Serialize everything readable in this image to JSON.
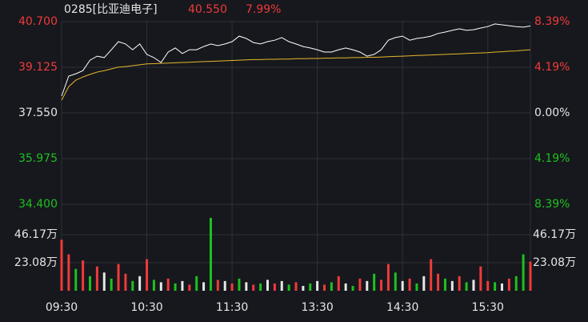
{
  "chart_data": {
    "type": "line",
    "title": "0285[比亚迪电子]",
    "price_label": "40.550",
    "change_label": "7.99%",
    "categories": [
      "09:30",
      null,
      null,
      null,
      null,
      null,
      null,
      null,
      null,
      null,
      null,
      null,
      "10:30",
      null,
      null,
      null,
      null,
      null,
      null,
      null,
      null,
      null,
      null,
      null,
      "11:30",
      null,
      null,
      null,
      null,
      null,
      null,
      null,
      null,
      null,
      null,
      null,
      "13:30",
      null,
      null,
      null,
      null,
      null,
      null,
      null,
      null,
      null,
      null,
      null,
      "14:30",
      null,
      null,
      null,
      null,
      null,
      null,
      null,
      null,
      null,
      null,
      null,
      "15:30",
      null,
      null,
      null,
      null,
      null,
      null
    ],
    "series": [
      {
        "color": "#ffffff",
        "values": [
          38.13,
          38.82,
          38.9,
          39.01,
          39.37,
          39.51,
          39.46,
          39.73,
          40.01,
          39.93,
          39.73,
          39.93,
          39.57,
          39.46,
          39.29,
          39.65,
          39.79,
          39.6,
          39.73,
          39.73,
          39.84,
          39.93,
          39.87,
          39.93,
          40.01,
          40.2,
          40.12,
          39.98,
          39.93,
          40.01,
          40.06,
          40.15,
          40.01,
          39.93,
          39.84,
          39.79,
          39.73,
          39.65,
          39.65,
          39.73,
          39.79,
          39.73,
          39.65,
          39.51,
          39.57,
          39.73,
          40.06,
          40.15,
          40.2,
          40.06,
          40.12,
          40.15,
          40.2,
          40.29,
          40.34,
          40.4,
          40.45,
          40.4,
          40.42,
          40.48,
          40.53,
          40.62,
          40.59,
          40.56,
          40.53,
          40.51,
          40.55
        ]
      },
      {
        "color": "#e8b52a",
        "values": [
          37.99,
          38.46,
          38.68,
          38.79,
          38.88,
          38.96,
          39.01,
          39.07,
          39.13,
          39.15,
          39.18,
          39.21,
          39.24,
          39.25,
          39.26,
          39.27,
          39.28,
          39.29,
          39.3,
          39.31,
          39.32,
          39.33,
          39.34,
          39.35,
          39.36,
          39.37,
          39.38,
          39.39,
          39.39,
          39.4,
          39.4,
          39.41,
          39.41,
          39.42,
          39.42,
          39.43,
          39.43,
          39.44,
          39.44,
          39.45,
          39.45,
          39.46,
          39.46,
          39.47,
          39.47,
          39.48,
          39.49,
          39.5,
          39.51,
          39.52,
          39.53,
          39.54,
          39.55,
          39.56,
          39.57,
          39.58,
          39.59,
          39.6,
          39.61,
          39.62,
          39.63,
          39.65,
          39.66,
          39.68,
          39.69,
          39.71,
          39.73
        ]
      }
    ],
    "ylim": [
      34.4,
      40.7
    ],
    "yticks": [
      {
        "value": 40.7,
        "label": "40.700"
      },
      {
        "value": 39.125,
        "label": "39.125"
      },
      {
        "value": 37.55,
        "label": "37.550"
      },
      {
        "value": 35.975,
        "label": "35.975"
      },
      {
        "value": 34.4,
        "label": "34.400"
      }
    ],
    "y2lim": [
      -8.39,
      8.39
    ],
    "y2ticks": [
      {
        "value": 8.39,
        "label": "8.39%"
      },
      {
        "value": 4.19,
        "label": "4.19%"
      },
      {
        "value": 0,
        "label": "0.00%"
      },
      {
        "value": -4.19,
        "label": "4.19%"
      },
      {
        "value": -8.39,
        "label": "8.39%"
      }
    ],
    "grid": true,
    "volume": {
      "type": "bar",
      "values": [
        42,
        30,
        18,
        25,
        12,
        20,
        15,
        10,
        22,
        14,
        8,
        12,
        26,
        9,
        7,
        10,
        6,
        8,
        5,
        12,
        7,
        60,
        9,
        8,
        6,
        10,
        7,
        5,
        6,
        9,
        6,
        8,
        5,
        7,
        4,
        6,
        8,
        5,
        7,
        12,
        6,
        4,
        10,
        8,
        14,
        9,
        22,
        15,
        8,
        10,
        6,
        12,
        26,
        14,
        10,
        8,
        12,
        7,
        9,
        20,
        8,
        7,
        6,
        10,
        12,
        30,
        24
      ],
      "colors": [
        "#f03a3a",
        "#f03a3a",
        "#1fc01f",
        "#f03a3a",
        "#1fc01f",
        "#f03a3a",
        "#e6e6e6",
        "#1fc01f",
        "#f03a3a",
        "#f03a3a",
        "#1fc01f",
        "#e6e6e6",
        "#f03a3a",
        "#1fc01f",
        "#e6e6e6",
        "#f03a3a",
        "#1fc01f",
        "#e6e6e6",
        "#f03a3a",
        "#1fc01f",
        "#e6e6e6",
        "#1fc01f",
        "#f03a3a",
        "#e6e6e6",
        "#f03a3a",
        "#1fc01f",
        "#e6e6e6",
        "#f03a3a",
        "#1fc01f",
        "#e6e6e6",
        "#f03a3a",
        "#e6e6e6",
        "#1fc01f",
        "#f03a3a",
        "#e6e6e6",
        "#1fc01f",
        "#e6e6e6",
        "#f03a3a",
        "#1fc01f",
        "#f03a3a",
        "#e6e6e6",
        "#1fc01f",
        "#f03a3a",
        "#e6e6e6",
        "#1fc01f",
        "#f03a3a",
        "#f03a3a",
        "#1fc01f",
        "#e6e6e6",
        "#f03a3a",
        "#1fc01f",
        "#e6e6e6",
        "#f03a3a",
        "#f03a3a",
        "#1fc01f",
        "#e6e6e6",
        "#f03a3a",
        "#1fc01f",
        "#e6e6e6",
        "#f03a3a",
        "#f03a3a",
        "#1fc01f",
        "#e6e6e6",
        "#f03a3a",
        "#1fc01f",
        "#1fc01f",
        "#f03a3a"
      ],
      "ylim": [
        0,
        69.25
      ],
      "yticks": [
        {
          "value": 23.08,
          "label": "23.08万"
        },
        {
          "value": 46.17,
          "label": "46.17万"
        }
      ]
    }
  }
}
